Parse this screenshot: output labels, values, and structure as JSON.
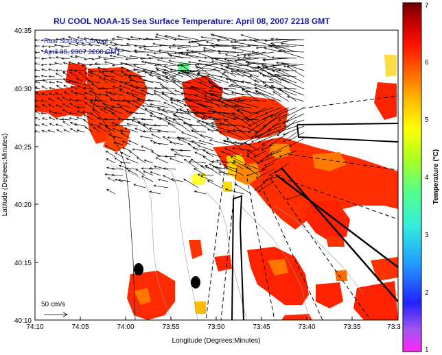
{
  "chart_data": {
    "type": "heatmap",
    "title": "RU COOL  NOAA-15  Sea Surface Temperature:  April 08, 2007 2218 GMT",
    "xlabel": "Longitude (Degrees:Minutes)",
    "ylabel": "Latitude (Degrees:Minutes)",
    "x_ticks": [
      "74:10",
      "74:05",
      "74:00",
      "73:55",
      "73:50",
      "73:45",
      "73:40",
      "73:35",
      "73:3"
    ],
    "y_ticks": [
      "40:35",
      "40:30",
      "40:25",
      "40:20",
      "40:15",
      "40:10"
    ],
    "colorbar": {
      "label": "Temperature (°C)",
      "min": 1,
      "max": 7,
      "ticks": [
        "1",
        "2",
        "3",
        "4",
        "5",
        "6",
        "7"
      ],
      "colors": [
        "#ff22ff",
        "#8866ee",
        "#2222ff",
        "#2299ff",
        "#33eedd",
        "#55ff88",
        "#99ff33",
        "#ffff00",
        "#ffbb00",
        "#ff6600",
        "#ff1100",
        "#cc0000",
        "#6a0000"
      ]
    },
    "legend": {
      "line1": "Raw Surface Current",
      "line2": "April 08, 2007 2200 GMT",
      "placement": "top-left"
    },
    "scale_label": "50 cm/s",
    "x_range_deg": [
      -74.1667,
      -73.55
    ],
    "y_range_deg": [
      40.1667,
      40.5833
    ]
  }
}
